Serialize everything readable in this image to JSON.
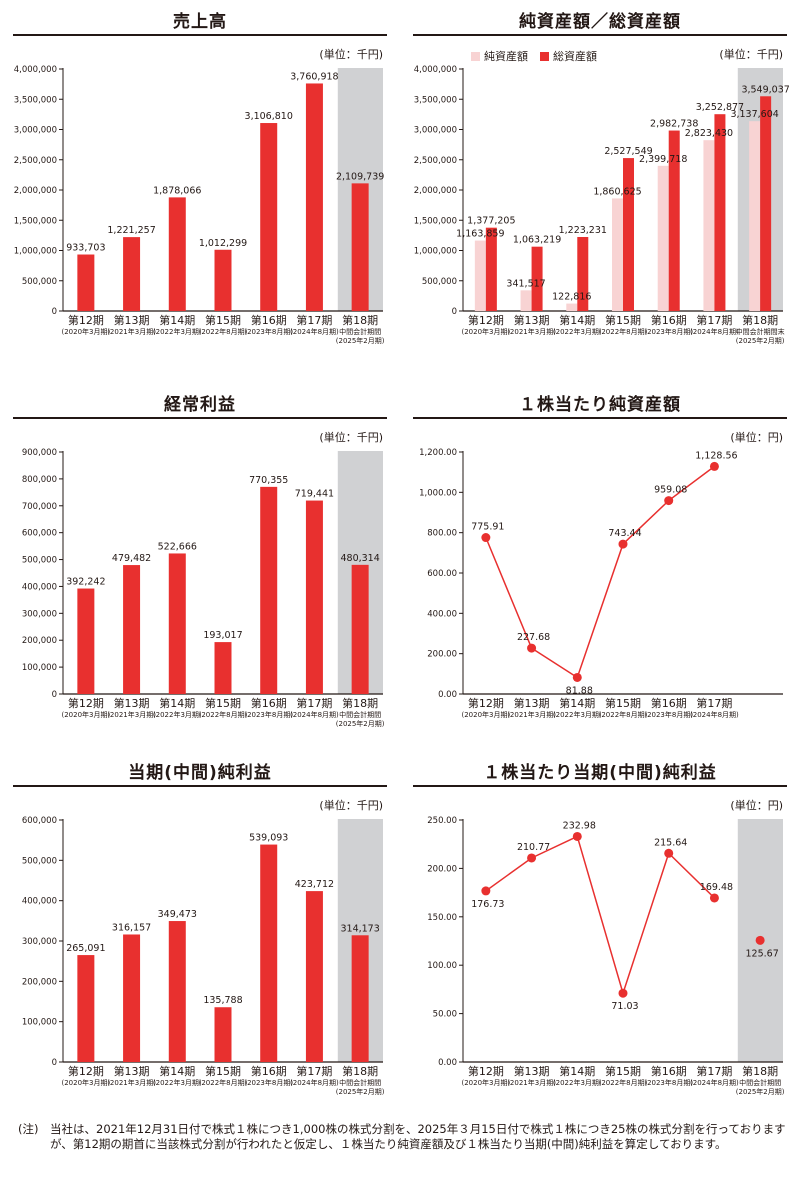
{
  "note": {
    "label": "(注)",
    "text": "当社は、2021年12月31日付で株式１株につき1,000株の株式分割を、2025年３月15日付で株式１株につき25株の株式分割を行っておりますが、第12期の期首に当該株式分割が行われたと仮定し、１株当たり純資産額及び１株当たり当期(中間)純利益を算定しております。"
  },
  "colors": {
    "bar": "#e8302f",
    "bar_light": "#f8d3d3",
    "shade": "#d0d1d3",
    "axis": "#231815"
  },
  "chart_data": [
    {
      "id": "sales",
      "type": "bar",
      "title": "売上高",
      "unit": "(単位：千円)",
      "categories": [
        "第12期",
        "第13期",
        "第14期",
        "第15期",
        "第16期",
        "第17期",
        "第18期"
      ],
      "category_sub": [
        [
          "(2020年3月期)"
        ],
        [
          "(2021年3月期)"
        ],
        [
          "(2022年3月期)"
        ],
        [
          "(2022年8月期)"
        ],
        [
          "(2023年8月期)"
        ],
        [
          "(2024年8月期)"
        ],
        [
          "中間会計期間",
          "(2025年2月期)"
        ]
      ],
      "series": [
        {
          "values": [
            933703,
            1221257,
            1878066,
            1012299,
            3106810,
            3760918,
            2109739
          ],
          "labels": [
            "933,703",
            "1,221,257",
            "1,878,066",
            "1,012,299",
            "3,106,810",
            "3,760,918",
            "2,109,739"
          ]
        }
      ],
      "ylim": [
        0,
        4000000
      ],
      "yticks": [
        0,
        500000,
        1000000,
        1500000,
        2000000,
        2500000,
        3000000,
        3500000,
        4000000
      ],
      "ytick_labels": [
        "0",
        "500,000",
        "1,000,000",
        "1,500,000",
        "2,000,000",
        "2,500,000",
        "3,000,000",
        "3,500,000",
        "4,000,000"
      ],
      "shaded_category": 6
    },
    {
      "id": "assets",
      "type": "bar",
      "title": "純資産額／総資産額",
      "unit": "(単位：千円)",
      "categories": [
        "第12期",
        "第13期",
        "第14期",
        "第15期",
        "第16期",
        "第17期",
        "第18期"
      ],
      "category_sub": [
        [
          "(2020年3月期)"
        ],
        [
          "(2021年3月期)"
        ],
        [
          "(2022年3月期)"
        ],
        [
          "(2022年8月期)"
        ],
        [
          "(2023年8月期)"
        ],
        [
          "(2024年8月期)"
        ],
        [
          "中間会計期間末",
          "(2025年2月期)"
        ]
      ],
      "series": [
        {
          "name": "純資産額",
          "values": [
            1163859,
            341517,
            122816,
            1860625,
            2399718,
            2823430,
            3137604
          ],
          "labels": [
            "1,163,859",
            "341,517",
            "122,816",
            "1,860,625",
            "2,399,718",
            "2,823,430",
            "3,137,604"
          ]
        },
        {
          "name": "総資産額",
          "values": [
            1377205,
            1063219,
            1223231,
            2527549,
            2982738,
            3252877,
            3549037
          ],
          "labels": [
            "1,377,205",
            "1,063,219",
            "1,223,231",
            "2,527,549",
            "2,982,738",
            "3,252,877",
            "3,549,037"
          ]
        }
      ],
      "ylim": [
        0,
        4000000
      ],
      "yticks": [
        0,
        500000,
        1000000,
        1500000,
        2000000,
        2500000,
        3000000,
        3500000,
        4000000
      ],
      "ytick_labels": [
        "0",
        "500,000",
        "1,000,000",
        "1,500,000",
        "2,000,000",
        "2,500,000",
        "3,000,000",
        "3,500,000",
        "4,000,000"
      ],
      "shaded_category": 6,
      "legend_position": "top-left"
    },
    {
      "id": "ordinary",
      "type": "bar",
      "title": "経常利益",
      "unit": "(単位：千円)",
      "categories": [
        "第12期",
        "第13期",
        "第14期",
        "第15期",
        "第16期",
        "第17期",
        "第18期"
      ],
      "category_sub": [
        [
          "(2020年3月期)"
        ],
        [
          "(2021年3月期)"
        ],
        [
          "(2022年3月期)"
        ],
        [
          "(2022年8月期)"
        ],
        [
          "(2023年8月期)"
        ],
        [
          "(2024年8月期)"
        ],
        [
          "中間会計期間",
          "(2025年2月期)"
        ]
      ],
      "series": [
        {
          "values": [
            392242,
            479482,
            522666,
            193017,
            770355,
            719441,
            480314
          ],
          "labels": [
            "392,242",
            "479,482",
            "522,666",
            "193,017",
            "770,355",
            "719,441",
            "480,314"
          ]
        }
      ],
      "ylim": [
        0,
        900000
      ],
      "yticks": [
        0,
        100000,
        200000,
        300000,
        400000,
        500000,
        600000,
        700000,
        800000,
        900000
      ],
      "ytick_labels": [
        "0",
        "100,000",
        "200,000",
        "300,000",
        "400,000",
        "500,000",
        "600,000",
        "700,000",
        "800,000",
        "900,000"
      ],
      "shaded_category": 6
    },
    {
      "id": "bps",
      "type": "line",
      "title": "１株当たり純資産額",
      "unit": "(単位：円)",
      "categories": [
        "第12期",
        "第13期",
        "第14期",
        "第15期",
        "第16期",
        "第17期"
      ],
      "category_sub": [
        [
          "(2020年3月期)"
        ],
        [
          "(2021年3月期)"
        ],
        [
          "(2022年3月期)"
        ],
        [
          "(2022年8月期)"
        ],
        [
          "(2023年8月期)"
        ],
        [
          "(2024年8月期)"
        ]
      ],
      "series": [
        {
          "values": [
            775.91,
            227.68,
            81.88,
            743.44,
            959.08,
            1128.56
          ],
          "labels": [
            "775.91",
            "227.68",
            "81.88",
            "743.44",
            "959.08",
            "1,128.56"
          ]
        }
      ],
      "ylim": [
        0,
        1200
      ],
      "yticks": [
        0,
        200,
        400,
        600,
        800,
        1000,
        1200
      ],
      "ytick_labels": [
        "0.00",
        "200.00",
        "400.00",
        "600.00",
        "800.00",
        "1,000.00",
        "1,200.00"
      ],
      "shaded_category": null
    },
    {
      "id": "netincome",
      "type": "bar",
      "title": "当期(中間)純利益",
      "unit": "(単位：千円)",
      "categories": [
        "第12期",
        "第13期",
        "第14期",
        "第15期",
        "第16期",
        "第17期",
        "第18期"
      ],
      "category_sub": [
        [
          "(2020年3月期)"
        ],
        [
          "(2021年3月期)"
        ],
        [
          "(2022年3月期)"
        ],
        [
          "(2022年8月期)"
        ],
        [
          "(2023年8月期)"
        ],
        [
          "(2024年8月期)"
        ],
        [
          "中間会計期間",
          "(2025年2月期)"
        ]
      ],
      "series": [
        {
          "values": [
            265091,
            316157,
            349473,
            135788,
            539093,
            423712,
            314173
          ],
          "labels": [
            "265,091",
            "316,157",
            "349,473",
            "135,788",
            "539,093",
            "423,712",
            "314,173"
          ]
        }
      ],
      "ylim": [
        0,
        600000
      ],
      "yticks": [
        0,
        100000,
        200000,
        300000,
        400000,
        500000,
        600000
      ],
      "ytick_labels": [
        "0",
        "100,000",
        "200,000",
        "300,000",
        "400,000",
        "500,000",
        "600,000"
      ],
      "shaded_category": 6
    },
    {
      "id": "eps",
      "type": "line",
      "title": "１株当たり当期(中間)純利益",
      "unit": "(単位：円)",
      "categories": [
        "第12期",
        "第13期",
        "第14期",
        "第15期",
        "第16期",
        "第17期",
        "第18期"
      ],
      "category_sub": [
        [
          "(2020年3月期)"
        ],
        [
          "(2021年3月期)"
        ],
        [
          "(2022年3月期)"
        ],
        [
          "(2022年8月期)"
        ],
        [
          "(2023年8月期)"
        ],
        [
          "(2024年8月期)"
        ],
        [
          "中間会計期間",
          "(2025年2月期)"
        ]
      ],
      "series": [
        {
          "values": [
            176.73,
            210.77,
            232.98,
            71.03,
            215.64,
            169.48,
            125.67
          ],
          "labels": [
            "176.73",
            "210.77",
            "232.98",
            "71.03",
            "215.64",
            "169.48",
            "125.67"
          ]
        }
      ],
      "connected_points": 6,
      "ylim": [
        0,
        250
      ],
      "yticks": [
        0,
        50,
        100,
        150,
        200,
        250
      ],
      "ytick_labels": [
        "0.00",
        "50.00",
        "100.00",
        "150.00",
        "200.00",
        "250.00"
      ],
      "shaded_category": 6
    }
  ]
}
